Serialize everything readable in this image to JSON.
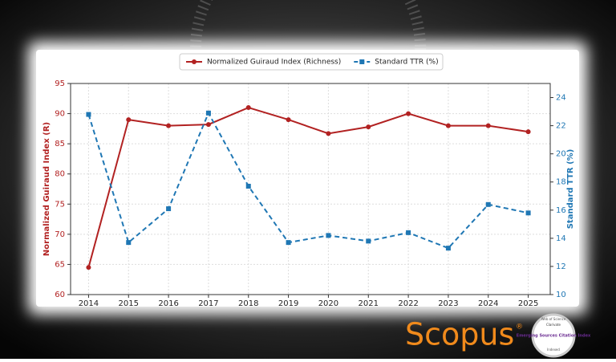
{
  "chart_data": {
    "type": "line",
    "x": [
      2014,
      2015,
      2016,
      2017,
      2018,
      2019,
      2020,
      2021,
      2022,
      2023,
      2024,
      2025
    ],
    "xlim": [
      2013.55,
      2025.55
    ],
    "xticks": [
      2014,
      2015,
      2016,
      2017,
      2018,
      2019,
      2020,
      2021,
      2022,
      2023,
      2024,
      2025
    ],
    "ylabel": "Normalized Guiraud Index (R)",
    "y2label": "Standard TTR (%)",
    "ylim": [
      60,
      95
    ],
    "yticks": [
      60,
      65,
      70,
      75,
      80,
      85,
      90,
      95
    ],
    "y2lim": [
      10,
      25
    ],
    "y2ticks": [
      10,
      12,
      14,
      16,
      18,
      20,
      22,
      24
    ],
    "grid": true,
    "legend": "top",
    "series": [
      {
        "name": "Normalized Guiraud Index (Richness)",
        "color": "#b22222",
        "dash": false,
        "values": [
          64.5,
          89,
          88,
          88.2,
          91,
          89,
          86.7,
          87.8,
          90,
          88,
          88,
          87
        ]
      },
      {
        "name": "Standard TTR (%)",
        "color": "#1f77b4",
        "dash": true,
        "axis": "y2",
        "values": [
          22.8,
          13.7,
          16.1,
          22.9,
          17.7,
          13.7,
          14.2,
          13.8,
          14.4,
          13.3,
          16.4,
          15.8
        ]
      }
    ]
  },
  "branding": {
    "logo": "Scopus",
    "registered": "®",
    "badge_top": "Web of Science",
    "badge_brand": "Clarivate",
    "badge_main": "Emerging Sources Citation Index",
    "badge_bottom": "Indexed"
  }
}
